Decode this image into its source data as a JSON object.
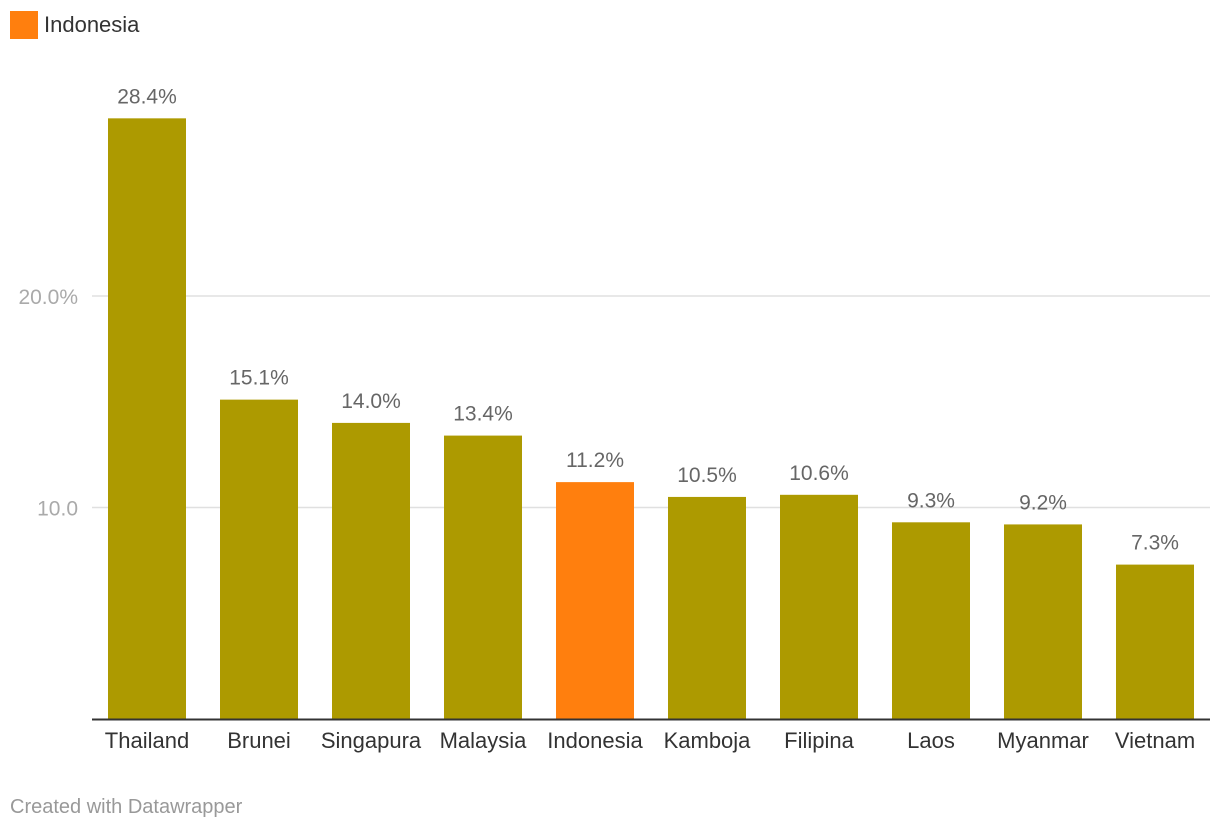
{
  "legend": {
    "label": "Indonesia",
    "color": "#ff7f0e"
  },
  "footer": {
    "credit": "Created with Datawrapper"
  },
  "colors": {
    "default_bar": "#ad9a00",
    "highlight_bar": "#ff7f0e",
    "grid": "#e0e0e0",
    "axis": "#333333"
  },
  "chart_data": {
    "type": "bar",
    "categories": [
      "Thailand",
      "Brunei",
      "Singapura",
      "Malaysia",
      "Indonesia",
      "Kamboja",
      "Filipina",
      "Laos",
      "Myanmar",
      "Vietnam"
    ],
    "values": [
      28.4,
      15.1,
      14.0,
      13.4,
      11.2,
      10.5,
      10.6,
      9.3,
      9.2,
      7.3
    ],
    "data_labels": [
      "28.4%",
      "15.1%",
      "14.0%",
      "13.4%",
      "11.2%",
      "10.5%",
      "10.6%",
      "9.3%",
      "9.2%",
      "7.3%"
    ],
    "highlight": "Indonesia",
    "y_ticks": [
      10,
      20
    ],
    "y_tick_labels": [
      "10.0",
      "20.0%"
    ],
    "ylim": [
      0,
      30
    ],
    "grid": true,
    "legend_position": "top-left",
    "title": "",
    "xlabel": "",
    "ylabel": ""
  }
}
